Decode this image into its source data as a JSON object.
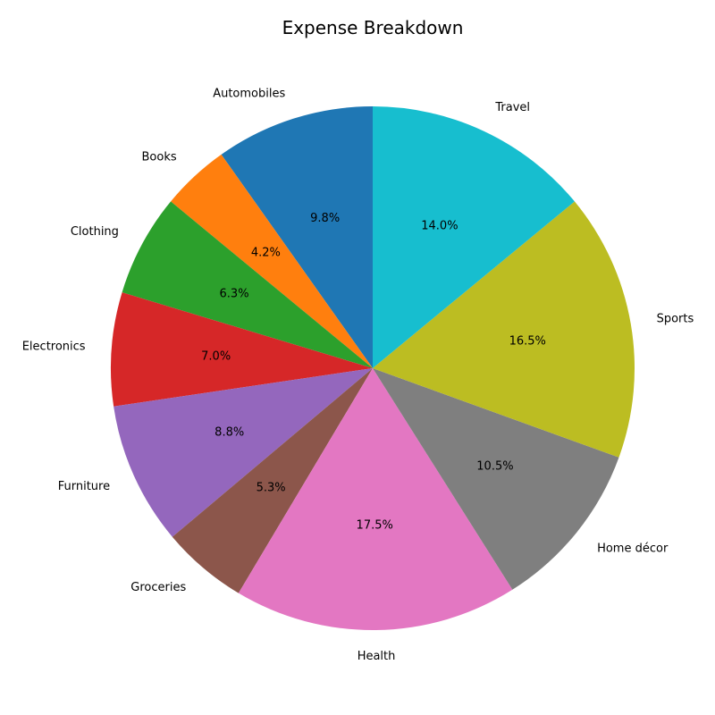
{
  "chart_data": {
    "type": "pie",
    "title": "Expense Breakdown",
    "start_angle_deg": 90,
    "direction": "counterclockwise",
    "categories": [
      "Automobiles",
      "Books",
      "Clothing",
      "Electronics",
      "Furniture",
      "Groceries",
      "Health",
      "Home décor",
      "Sports",
      "Travel"
    ],
    "values": [
      9.8,
      4.2,
      6.3,
      7.0,
      8.8,
      5.3,
      17.5,
      10.5,
      16.5,
      14.0
    ],
    "value_labels": [
      "9.8%",
      "4.2%",
      "6.3%",
      "7.0%",
      "8.8%",
      "5.3%",
      "17.5%",
      "10.5%",
      "16.5%",
      "14.0%"
    ],
    "colors": [
      "#1f77b4",
      "#ff7f0e",
      "#2ca02c",
      "#d62728",
      "#9467bd",
      "#8c564b",
      "#e377c2",
      "#7f7f7f",
      "#bcbd22",
      "#17becf"
    ],
    "legend": "none"
  }
}
